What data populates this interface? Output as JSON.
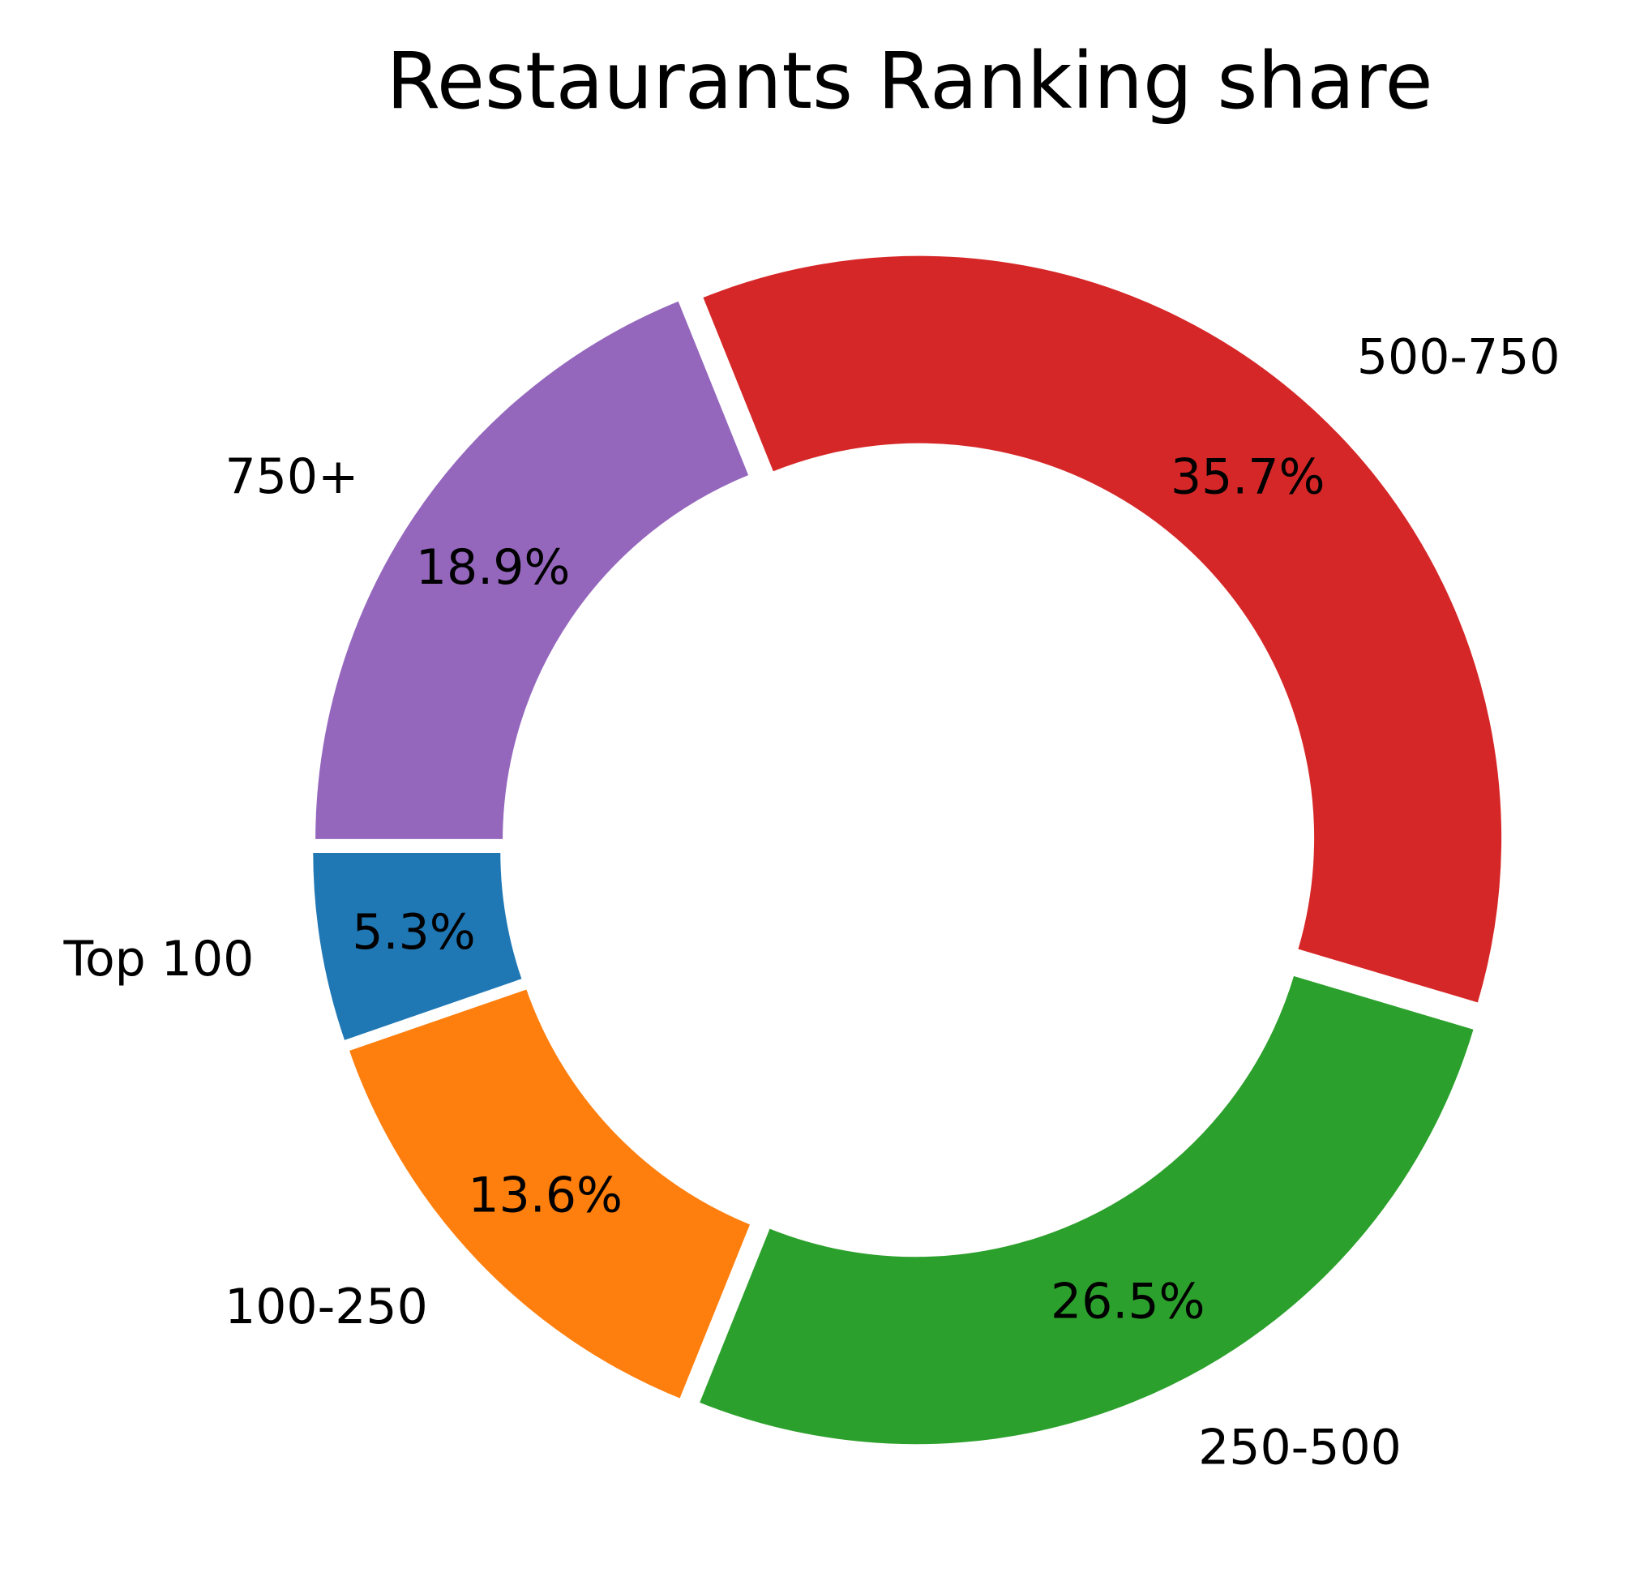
{
  "chart_data": {
    "type": "pie",
    "title": "Restaurants Ranking share",
    "categories": [
      "Top 100",
      "100-250",
      "250-500",
      "500-750",
      "750+"
    ],
    "values": [
      5.3,
      13.6,
      26.5,
      35.7,
      18.9
    ],
    "value_labels": [
      "5.3%",
      "13.6%",
      "26.5%",
      "35.7%",
      "18.9%"
    ],
    "colors": [
      "#1f77b4",
      "#ff7f0e",
      "#2ca02c",
      "#d62728",
      "#9467bd"
    ],
    "donut": true,
    "legend": "none"
  }
}
